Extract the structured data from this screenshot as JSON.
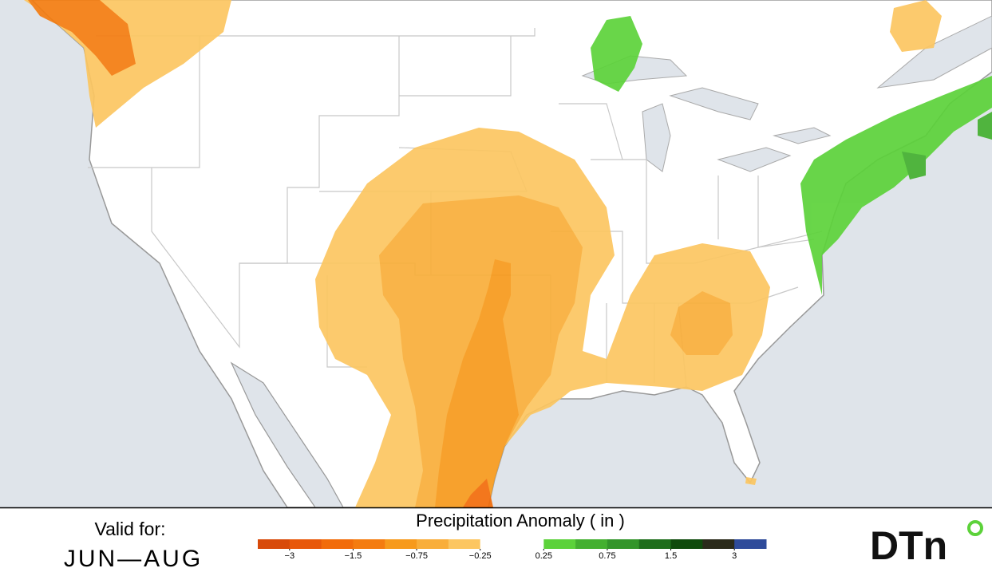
{
  "map": {
    "valid_label": "Valid for:",
    "period": "JUN—AUG",
    "legend": {
      "title": "Precipitation Anomaly ( in )",
      "colors": [
        "#d84a0a",
        "#e8580a",
        "#f26c0a",
        "#f47c10",
        "#f79a1c",
        "#f9ae3a",
        "#fcc661",
        "#ffffff",
        "#ffffff",
        "#5cd23a",
        "#44b030",
        "#33952a",
        "#1f6e1c",
        "#0f4a0c",
        "#2a2a1a",
        "#2e4b9a"
      ],
      "ticks": [
        {
          "value": -3,
          "label": "−3"
        },
        {
          "value": -1.5,
          "label": "−1.5"
        },
        {
          "value": -0.75,
          "label": "−0.75"
        },
        {
          "value": -0.25,
          "label": "−0.25"
        },
        0.25,
        0.75,
        1.5,
        3
      ]
    },
    "logo": "DTn"
  }
}
